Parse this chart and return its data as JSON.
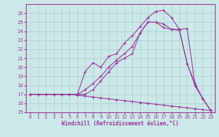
{
  "xlabel": "Windchill (Refroidissement éolien,°C)",
  "bg_color": "#cce8e8",
  "line_color": "#993399",
  "grid_color": "#aacccc",
  "xlim": [
    -0.5,
    23.5
  ],
  "ylim": [
    15,
    27
  ],
  "yticks": [
    15,
    16,
    17,
    18,
    19,
    20,
    21,
    22,
    23,
    24,
    25,
    26
  ],
  "xticks": [
    0,
    1,
    2,
    3,
    4,
    5,
    6,
    7,
    8,
    9,
    10,
    11,
    12,
    13,
    14,
    15,
    16,
    17,
    18,
    19,
    20,
    21,
    22,
    23
  ],
  "line1_x": [
    0,
    1,
    2,
    3,
    4,
    5,
    6,
    7,
    8,
    9,
    10,
    11,
    12,
    13,
    14,
    15,
    16,
    17,
    18,
    19,
    20,
    21,
    22,
    23
  ],
  "line1_y": [
    17,
    17,
    17,
    17,
    17,
    17,
    17,
    17.5,
    18.2,
    19.0,
    20.0,
    20.8,
    21.5,
    22.3,
    23.8,
    25.0,
    25.0,
    24.8,
    24.2,
    24.2,
    24.3,
    18.0,
    16.5,
    15.2
  ],
  "line2_x": [
    0,
    1,
    2,
    3,
    4,
    5,
    6,
    7,
    8,
    9,
    10,
    11,
    12,
    13,
    14,
    15,
    16,
    17,
    18,
    19,
    20,
    21,
    22,
    23
  ],
  "line2_y": [
    17,
    17,
    17,
    17,
    17,
    17,
    17,
    19.5,
    20.5,
    20.0,
    21.2,
    21.5,
    22.7,
    23.5,
    24.5,
    25.5,
    26.2,
    26.3,
    25.5,
    24.2,
    20.4,
    18.2,
    16.5,
    15.2
  ],
  "line3_x": [
    0,
    3,
    4,
    5,
    6,
    7,
    8,
    9,
    10,
    11,
    12,
    13,
    14,
    15,
    16,
    17,
    18,
    19,
    20,
    21,
    22,
    23
  ],
  "line3_y": [
    17,
    17,
    17,
    17,
    17,
    17,
    17.5,
    18.5,
    19.5,
    20.5,
    21.0,
    21.5,
    23.8,
    25.0,
    25.0,
    24.4,
    24.2,
    24.1,
    20.4,
    18.0,
    16.5,
    15.2
  ],
  "line4_x": [
    0,
    1,
    2,
    3,
    4,
    5,
    6,
    7,
    8,
    9,
    10,
    11,
    12,
    13,
    14,
    15,
    16,
    17,
    18,
    19,
    20,
    21,
    22,
    23
  ],
  "line4_y": [
    17,
    17,
    17,
    17,
    17,
    17,
    16.9,
    16.8,
    16.7,
    16.6,
    16.5,
    16.4,
    16.3,
    16.2,
    16.1,
    16.0,
    15.9,
    15.8,
    15.7,
    15.6,
    15.5,
    15.4,
    15.3,
    15.2
  ]
}
